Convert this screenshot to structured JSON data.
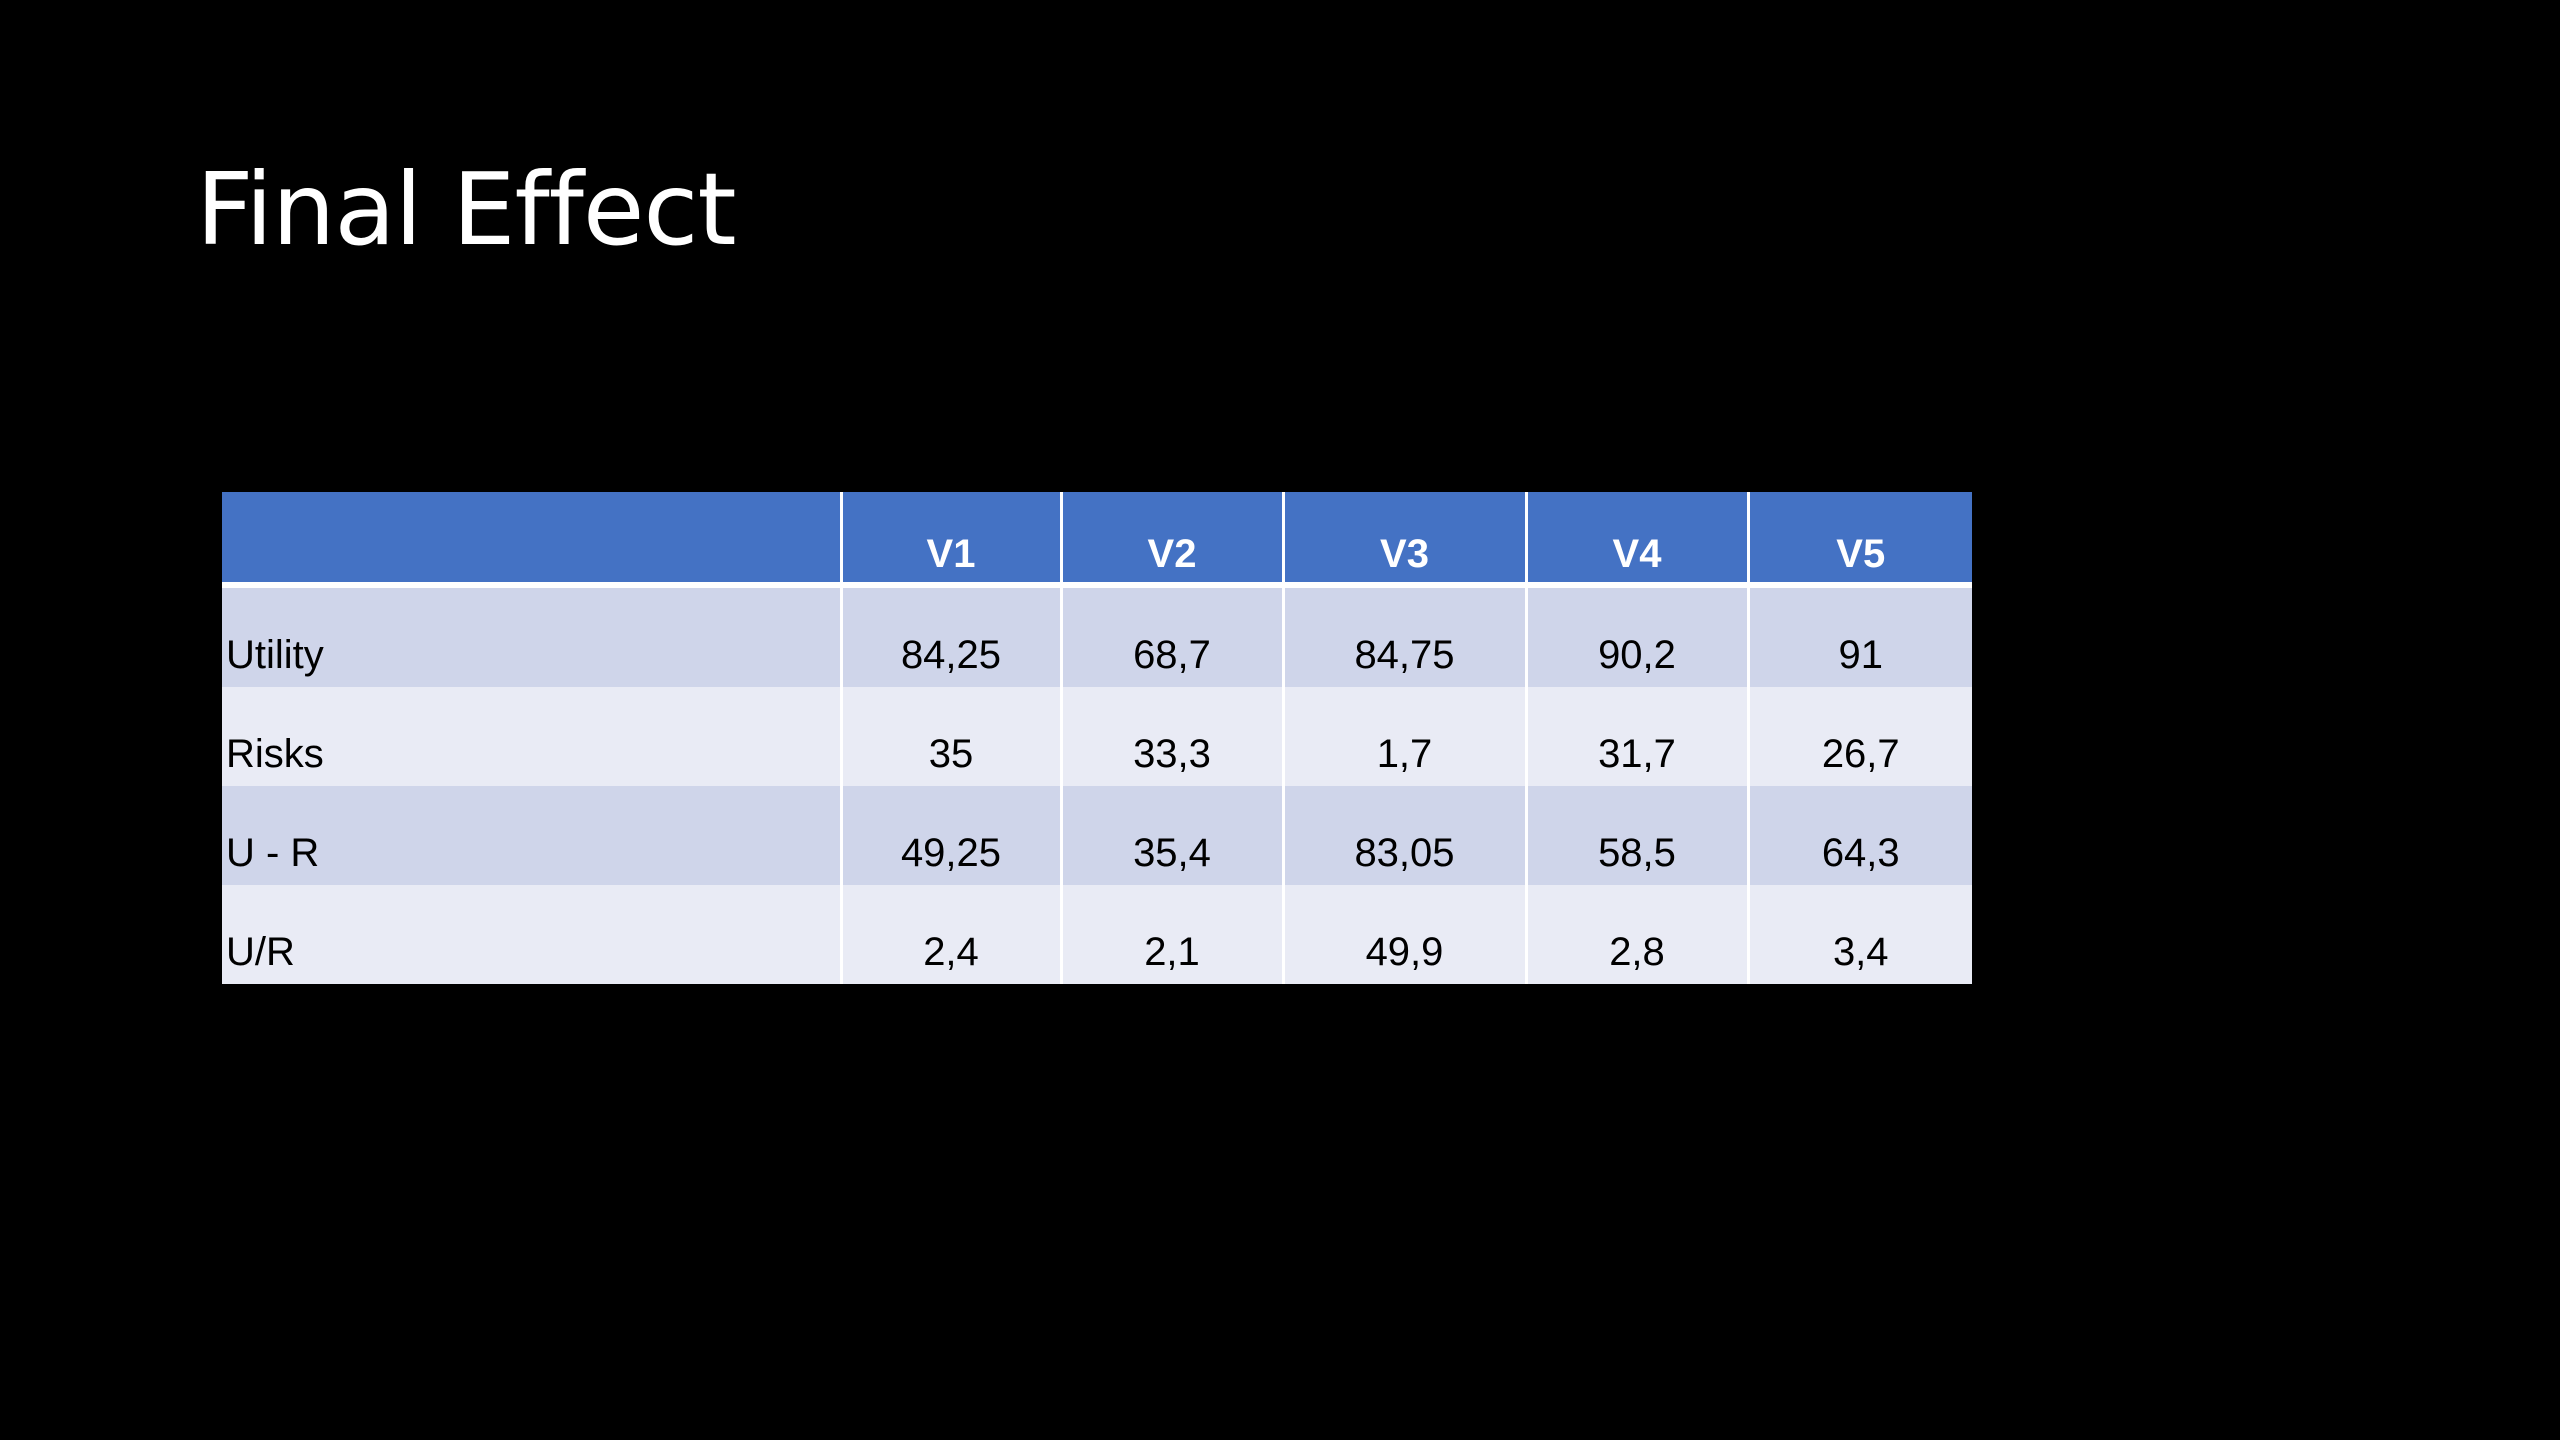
{
  "slide": {
    "title": "Final Effect"
  },
  "table": {
    "columns": [
      "",
      "V1",
      "V2",
      "V3",
      "V4",
      "V5"
    ],
    "rows": [
      {
        "label": "Utility",
        "values": [
          "84,25",
          "68,7",
          "84,75",
          "90,2",
          "91"
        ]
      },
      {
        "label": "Risks",
        "values": [
          "35",
          "33,3",
          "1,7",
          "31,7",
          "26,7"
        ]
      },
      {
        "label": "U - R",
        "values": [
          "49,25",
          "35,4",
          "83,05",
          "58,5",
          "64,3"
        ]
      },
      {
        "label": "U/R",
        "values": [
          "2,4",
          "2,1",
          "49,9",
          "2,8",
          "3,4"
        ]
      }
    ],
    "colors": {
      "header": "#4472c4",
      "row_dark": "#cfd5ea",
      "row_light": "#e9ebf5"
    }
  }
}
